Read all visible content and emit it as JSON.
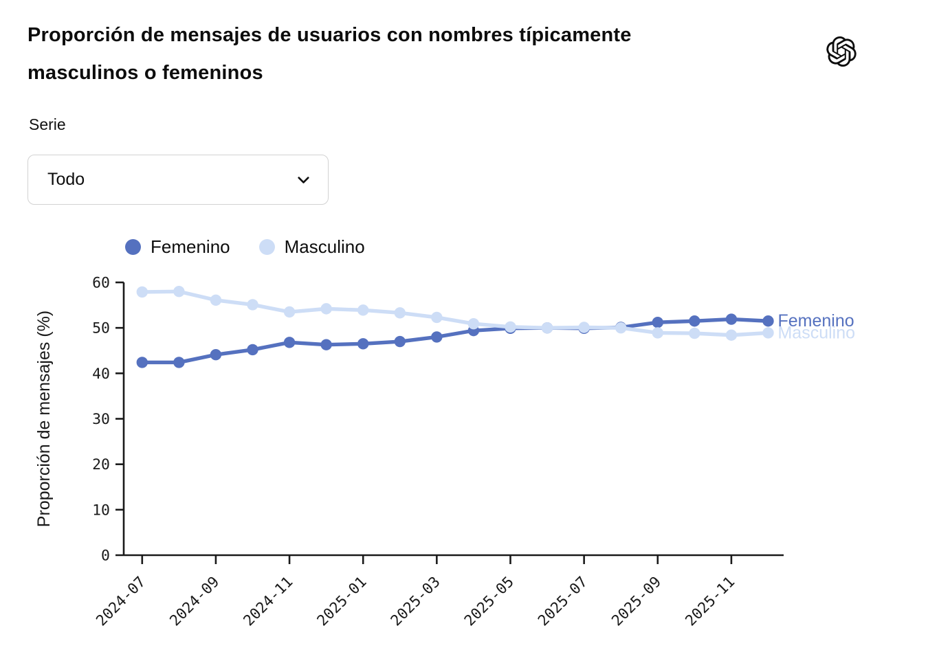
{
  "header": {
    "title": "Proporción de mensajes de usuarios con nombres típicamente\nmasculinos o femeninos",
    "logo_icon": "openai-logo"
  },
  "controls": {
    "label": "Serie",
    "dropdown_value": "Todo",
    "dropdown_icon": "chevron-down"
  },
  "legend": {
    "items": [
      {
        "label": "Femenino",
        "color": "#5571bf"
      },
      {
        "label": "Masculino",
        "color": "#cdddf6"
      }
    ]
  },
  "chart_data": {
    "type": "line",
    "title": "",
    "xlabel": "",
    "ylabel": "Proporción de mensajes (%)",
    "ylim": [
      0,
      60
    ],
    "yticks": [
      0,
      10,
      20,
      30,
      40,
      50,
      60
    ],
    "grid": false,
    "legend_position": "top-left",
    "x": [
      "2024-07",
      "2024-08",
      "2024-09",
      "2024-10",
      "2024-11",
      "2024-12",
      "2025-01",
      "2025-02",
      "2025-03",
      "2025-04",
      "2025-05",
      "2025-06",
      "2025-07",
      "2025-08",
      "2025-09",
      "2025-10",
      "2025-11",
      "2025-12"
    ],
    "x_tick_labels": [
      "2024-07",
      "2024-09",
      "2024-11",
      "2025-01",
      "2025-03",
      "2025-05",
      "2025-07",
      "2025-09",
      "2025-11"
    ],
    "series": [
      {
        "name": "Femenino",
        "color": "#5571bf",
        "end_label": "Femenino",
        "values": [
          42.4,
          42.4,
          44.1,
          45.2,
          46.8,
          46.3,
          46.5,
          47.0,
          48.0,
          49.4,
          49.9,
          50.0,
          49.9,
          50.1,
          51.2,
          51.5,
          51.9,
          51.5
        ]
      },
      {
        "name": "Masculino",
        "color": "#cdddf6",
        "end_label": "Masculino",
        "values": [
          57.9,
          58.0,
          56.1,
          55.1,
          53.5,
          54.2,
          53.9,
          53.3,
          52.3,
          50.9,
          50.2,
          50.0,
          50.1,
          50.0,
          48.9,
          48.8,
          48.4,
          48.9
        ]
      }
    ]
  }
}
